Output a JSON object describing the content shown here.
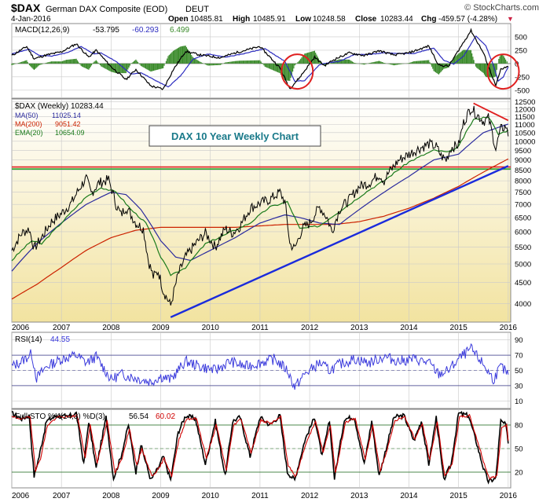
{
  "header": {
    "symbol": "$DAX",
    "name": "German DAX Composite (EOD)",
    "exchange": "DEUT",
    "watermark": "© StockCharts.com",
    "date": "4-Jan-2016",
    "open_label": "Open",
    "open": "10485.81",
    "high_label": "High",
    "high": "10485.91",
    "low_label": "Low",
    "low": "10248.58",
    "close_label": "Close",
    "close": "10283.44",
    "chg_label": "Chg",
    "chg": "-459.57 (-4.28%)",
    "chg_marker": "▼"
  },
  "colors": {
    "price_bg_top": "#ffffff",
    "price_bg_bottom": "#f2e3a0",
    "panel_bg": "#ffffff",
    "grid": "#c9c9c9",
    "price": "#000000",
    "ma50": "#2b2b9e",
    "ma200": "#cc2200",
    "ema20": "#1a7a1a",
    "trendline": "#1a2bdc",
    "hline_red": "#e02020",
    "hline_green": "#1a9a1a",
    "resistance": "#e02020",
    "macd": "#000000",
    "signal": "#2b2bbf",
    "histogram": "#3a8a2a",
    "circle": "#e02020",
    "rsi": "#3a3adc",
    "sto_k": "#000000",
    "sto_d": "#d00000",
    "title_box_text": "#1a7a8a",
    "negative": "#cc2244"
  },
  "chart_data": [
    {
      "panel": "macd",
      "type": "line",
      "title": "MACD(12,26,9)",
      "macd_value": "-53.795",
      "signal_value": "-60.293",
      "hist_value": "6.499",
      "y_ticks": [
        "500",
        "250",
        "0",
        "-250",
        "-500"
      ],
      "ylim": [
        -650,
        750
      ],
      "series": [
        {
          "name": "MACD",
          "x": [
            2006.0,
            2006.3,
            2006.45,
            2006.7,
            2007.0,
            2007.3,
            2007.55,
            2007.7,
            2008.0,
            2008.3,
            2008.5,
            2008.8,
            2009.05,
            2009.25,
            2009.5,
            2009.8,
            2010.2,
            2010.5,
            2011.0,
            2011.4,
            2011.6,
            2011.8,
            2012.1,
            2012.3,
            2012.5,
            2012.8,
            2013.1,
            2013.4,
            2013.7,
            2014.0,
            2014.4,
            2014.6,
            2014.8,
            2015.0,
            2015.25,
            2015.5,
            2015.65,
            2015.75,
            2015.85,
            2015.95,
            2016.0
          ],
          "y": [
            150,
            320,
            90,
            160,
            220,
            370,
            120,
            250,
            -60,
            -300,
            -110,
            -420,
            -480,
            -120,
            230,
            160,
            110,
            200,
            320,
            -80,
            -470,
            -260,
            120,
            -40,
            80,
            200,
            150,
            240,
            160,
            200,
            330,
            -30,
            -50,
            250,
            620,
            200,
            -170,
            -420,
            -110,
            -80,
            -54
          ]
        },
        {
          "name": "Signal",
          "x": [
            2006.0,
            2006.35,
            2006.55,
            2006.8,
            2007.1,
            2007.4,
            2007.65,
            2007.8,
            2008.1,
            2008.4,
            2008.6,
            2008.9,
            2009.15,
            2009.4,
            2009.65,
            2009.95,
            2010.3,
            2010.6,
            2011.1,
            2011.5,
            2011.7,
            2011.9,
            2012.2,
            2012.4,
            2012.6,
            2012.9,
            2013.2,
            2013.5,
            2013.8,
            2014.1,
            2014.5,
            2014.7,
            2014.9,
            2015.1,
            2015.35,
            2015.55,
            2015.7,
            2015.8,
            2015.9,
            2016.0
          ],
          "y": [
            180,
            270,
            150,
            140,
            200,
            320,
            180,
            200,
            40,
            -200,
            -170,
            -320,
            -440,
            -230,
            80,
            180,
            120,
            170,
            280,
            40,
            -330,
            -320,
            -20,
            20,
            40,
            170,
            170,
            200,
            190,
            190,
            290,
            60,
            -10,
            140,
            520,
            330,
            -30,
            -330,
            -250,
            -60
          ]
        }
      ]
    },
    {
      "panel": "price",
      "type": "line",
      "title": "$DAX (Weekly) 10283.44",
      "annotation": "DAX 10 Year Weekly Chart",
      "scale": "log",
      "x_ticks": [
        "2006",
        "2007",
        "2008",
        "2009",
        "2010",
        "2011",
        "2012",
        "2013",
        "2014",
        "2015",
        "2016"
      ],
      "y_ticks": [
        "12500",
        "12000",
        "11500",
        "11000",
        "10500",
        "10000",
        "9500",
        "9000",
        "8500",
        "8000",
        "7500",
        "7000",
        "6500",
        "6000",
        "5500",
        "5000",
        "4500",
        "4000"
      ],
      "ylim": [
        3600,
        12700
      ],
      "legend": [
        {
          "name": "$DAX (Weekly)",
          "value": "10283.44"
        },
        {
          "name": "MA(50)",
          "value": "11025.14"
        },
        {
          "name": "MA(200)",
          "value": "9051.42"
        },
        {
          "name": "EMA(20)",
          "value": "10654.09"
        }
      ],
      "series": [
        {
          "name": "$DAX (Weekly)",
          "x": [
            2006.0,
            2006.2,
            2006.35,
            2006.45,
            2006.6,
            2006.8,
            2007.0,
            2007.2,
            2007.4,
            2007.5,
            2007.6,
            2007.75,
            2007.95,
            2008.1,
            2008.2,
            2008.3,
            2008.5,
            2008.65,
            2008.75,
            2008.85,
            2008.95,
            2009.05,
            2009.2,
            2009.35,
            2009.5,
            2009.7,
            2009.9,
            2010.1,
            2010.3,
            2010.45,
            2010.6,
            2010.8,
            2011.0,
            2011.2,
            2011.4,
            2011.5,
            2011.6,
            2011.7,
            2011.85,
            2012.0,
            2012.2,
            2012.35,
            2012.45,
            2012.6,
            2012.8,
            2013.0,
            2013.2,
            2013.4,
            2013.5,
            2013.6,
            2013.8,
            2014.0,
            2014.2,
            2014.4,
            2014.55,
            2014.65,
            2014.75,
            2014.85,
            2015.0,
            2015.1,
            2015.25,
            2015.35,
            2015.5,
            2015.6,
            2015.7,
            2015.75,
            2015.85,
            2015.95,
            2016.0
          ],
          "y": [
            5400,
            5950,
            6100,
            5450,
            5800,
            6350,
            6650,
            7050,
            7800,
            8100,
            7450,
            7900,
            8050,
            7000,
            6600,
            6900,
            6300,
            6100,
            5100,
            4650,
            4800,
            4300,
            3950,
            4700,
            5200,
            5600,
            5950,
            5500,
            6100,
            5950,
            6200,
            6850,
            7050,
            7200,
            7500,
            7100,
            5600,
            5450,
            6100,
            6300,
            6900,
            6500,
            6000,
            6800,
            7200,
            7750,
            7900,
            8300,
            8000,
            8400,
            9000,
            9300,
            9600,
            9850,
            9700,
            9200,
            9000,
            9650,
            9800,
            11100,
            12100,
            11700,
            11200,
            11400,
            10200,
            9600,
            10700,
            10900,
            10283
          ]
        },
        {
          "name": "MA(50)",
          "x": [
            2006.0,
            2006.5,
            2007.0,
            2007.5,
            2008.0,
            2008.3,
            2008.6,
            2009.0,
            2009.3,
            2009.6,
            2010.0,
            2010.5,
            2011.0,
            2011.5,
            2011.8,
            2012.2,
            2012.6,
            2013.0,
            2013.5,
            2014.0,
            2014.5,
            2015.0,
            2015.5,
            2016.0
          ],
          "y": [
            4800,
            5600,
            6300,
            7000,
            7500,
            7400,
            6800,
            5700,
            5200,
            5100,
            5400,
            5800,
            6300,
            6600,
            6500,
            6300,
            6250,
            6800,
            7500,
            8200,
            9000,
            9300,
            10500,
            11025
          ]
        },
        {
          "name": "MA(200)",
          "x": [
            2006.0,
            2006.5,
            2007.0,
            2007.5,
            2008.0,
            2008.5,
            2009.0,
            2009.5,
            2010.0,
            2010.5,
            2011.0,
            2011.5,
            2012.0,
            2012.5,
            2013.0,
            2013.5,
            2014.0,
            2014.5,
            2015.0,
            2015.5,
            2016.0
          ],
          "y": [
            4100,
            4450,
            4900,
            5400,
            5800,
            6050,
            6150,
            6150,
            6150,
            6150,
            6200,
            6250,
            6250,
            6250,
            6350,
            6550,
            6850,
            7250,
            7750,
            8400,
            9051
          ]
        },
        {
          "name": "EMA(20)",
          "x": [
            2006.0,
            2006.4,
            2006.6,
            2007.0,
            2007.5,
            2007.8,
            2008.1,
            2008.4,
            2008.7,
            2009.0,
            2009.2,
            2009.5,
            2009.9,
            2010.3,
            2010.8,
            2011.2,
            2011.55,
            2011.8,
            2012.2,
            2012.5,
            2012.8,
            2013.2,
            2013.5,
            2014.0,
            2014.5,
            2014.8,
            2015.0,
            2015.3,
            2015.6,
            2015.8,
            2016.0
          ],
          "y": [
            5100,
            5700,
            5600,
            6300,
            7300,
            7700,
            7500,
            6800,
            6300,
            5200,
            4700,
            4900,
            5600,
            5900,
            6300,
            6900,
            7100,
            6100,
            6200,
            6600,
            7000,
            7600,
            8000,
            8900,
            9500,
            9400,
            9700,
            11300,
            11500,
            10400,
            10654
          ]
        }
      ],
      "hlines": [
        8650,
        8550
      ],
      "trendline": {
        "x": [
          2009.2,
          2016.0
        ],
        "y": [
          3700,
          8700
        ]
      },
      "resistance": {
        "x": [
          2015.3,
          2016.0
        ],
        "y": [
          12400,
          11250
        ]
      },
      "highlight_circles": [
        2011.75,
        2015.9
      ]
    },
    {
      "panel": "rsi",
      "type": "line",
      "title": "RSI(14)",
      "value": "44.55",
      "y_ticks": [
        "90",
        "70",
        "50",
        "30",
        "10"
      ],
      "ylim": [
        0,
        100
      ],
      "series": [
        {
          "name": "RSI(14)",
          "x": [
            2006.0,
            2006.2,
            2006.4,
            2006.5,
            2006.7,
            2007.0,
            2007.3,
            2007.5,
            2007.7,
            2008.0,
            2008.2,
            2008.5,
            2008.8,
            2009.0,
            2009.2,
            2009.5,
            2009.8,
            2010.1,
            2010.4,
            2010.7,
            2011.0,
            2011.3,
            2011.55,
            2011.7,
            2011.9,
            2012.2,
            2012.4,
            2012.6,
            2012.9,
            2013.2,
            2013.5,
            2013.8,
            2014.1,
            2014.4,
            2014.6,
            2014.8,
            2015.0,
            2015.25,
            2015.5,
            2015.7,
            2015.85,
            2016.0
          ],
          "y": [
            55,
            62,
            72,
            40,
            55,
            65,
            70,
            60,
            68,
            38,
            45,
            40,
            35,
            42,
            38,
            62,
            55,
            50,
            62,
            55,
            60,
            65,
            50,
            28,
            45,
            60,
            50,
            58,
            65,
            60,
            68,
            62,
            65,
            60,
            45,
            50,
            65,
            78,
            58,
            38,
            55,
            44.55
          ]
        }
      ]
    },
    {
      "panel": "sto",
      "type": "line",
      "title": "Full STO %K(14,3) %D(3)",
      "k_value": "56.54",
      "d_value": "60.02",
      "x_ticks": [
        "2006",
        "2007",
        "2008",
        "2009",
        "2010",
        "2011",
        "2012",
        "2013",
        "2014",
        "2015",
        "2016"
      ],
      "y_ticks": [
        "80",
        "50",
        "20"
      ],
      "ylim": [
        0,
        100
      ],
      "series": [
        {
          "name": "%K",
          "x": [
            2006.0,
            2006.2,
            2006.35,
            2006.45,
            2006.55,
            2006.7,
            2006.9,
            2007.1,
            2007.3,
            2007.45,
            2007.55,
            2007.7,
            2007.9,
            2008.05,
            2008.2,
            2008.35,
            2008.5,
            2008.6,
            2008.8,
            2008.95,
            2009.05,
            2009.2,
            2009.35,
            2009.5,
            2009.7,
            2009.9,
            2010.1,
            2010.3,
            2010.45,
            2010.6,
            2010.8,
            2011.0,
            2011.2,
            2011.4,
            2011.55,
            2011.7,
            2011.9,
            2012.1,
            2012.25,
            2012.4,
            2012.5,
            2012.7,
            2012.9,
            2013.1,
            2013.25,
            2013.4,
            2013.5,
            2013.7,
            2013.9,
            2014.1,
            2014.25,
            2014.4,
            2014.55,
            2014.7,
            2014.85,
            2015.0,
            2015.2,
            2015.35,
            2015.5,
            2015.6,
            2015.75,
            2015.85,
            2015.95,
            2016.0
          ],
          "y": [
            95,
            88,
            92,
            15,
            40,
            85,
            92,
            90,
            95,
            30,
            85,
            25,
            90,
            12,
            40,
            80,
            20,
            55,
            10,
            25,
            40,
            10,
            70,
            92,
            88,
            30,
            85,
            15,
            85,
            90,
            40,
            90,
            80,
            92,
            20,
            10,
            60,
            90,
            40,
            85,
            12,
            88,
            90,
            30,
            85,
            15,
            40,
            90,
            92,
            60,
            85,
            30,
            90,
            10,
            30,
            95,
            92,
            60,
            25,
            8,
            12,
            85,
            80,
            56.5
          ]
        },
        {
          "name": "%D",
          "x": [
            2006.0,
            2006.22,
            2006.37,
            2006.48,
            2006.58,
            2006.72,
            2006.92,
            2007.12,
            2007.32,
            2007.48,
            2007.58,
            2007.72,
            2007.92,
            2008.08,
            2008.22,
            2008.37,
            2008.52,
            2008.62,
            2008.82,
            2008.97,
            2009.07,
            2009.22,
            2009.37,
            2009.52,
            2009.72,
            2009.92,
            2010.12,
            2010.32,
            2010.47,
            2010.62,
            2010.82,
            2011.02,
            2011.22,
            2011.42,
            2011.57,
            2011.72,
            2011.92,
            2012.12,
            2012.27,
            2012.42,
            2012.52,
            2012.72,
            2012.92,
            2013.12,
            2013.27,
            2013.42,
            2013.52,
            2013.72,
            2013.92,
            2014.12,
            2014.27,
            2014.42,
            2014.57,
            2014.72,
            2014.87,
            2015.02,
            2015.22,
            2015.37,
            2015.52,
            2015.62,
            2015.77,
            2015.87,
            2015.97,
            2016.0
          ],
          "y": [
            90,
            88,
            90,
            22,
            38,
            80,
            90,
            90,
            92,
            38,
            80,
            32,
            85,
            18,
            38,
            75,
            28,
            50,
            15,
            25,
            38,
            15,
            62,
            88,
            88,
            38,
            80,
            22,
            80,
            88,
            45,
            86,
            82,
            90,
            28,
            14,
            55,
            86,
            45,
            80,
            18,
            84,
            88,
            36,
            80,
            22,
            40,
            86,
            90,
            62,
            82,
            35,
            85,
            15,
            30,
            90,
            92,
            62,
            30,
            12,
            15,
            78,
            80,
            60
          ]
        }
      ]
    }
  ]
}
